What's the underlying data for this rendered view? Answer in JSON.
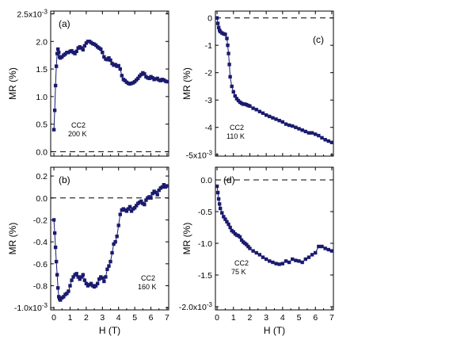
{
  "figure": {
    "x_axis_label": "H (T)",
    "y_axis_label": "MR (%)"
  },
  "colors": {
    "series": "#1a1a6e",
    "axes": "#000000"
  },
  "chart_data": [
    {
      "panel": "a",
      "type": "scatter",
      "panel_label": "(a)",
      "annotation_lines": [
        "CC2",
        "200 K"
      ],
      "x_tick_labels": [
        "0",
        "1",
        "2",
        "3",
        "4",
        "5",
        "6",
        "7"
      ],
      "y_tick_labels": [
        "0.0",
        "0.5",
        "1.0",
        "1.5",
        "2.0",
        "2.5x10-3"
      ],
      "y_scale_note": "2.5x10-3",
      "xlim": [
        -0.2,
        7.1
      ],
      "ylim": [
        -0.08,
        2.55
      ],
      "xlabel": "H (T)",
      "ylabel": "MR (%)",
      "zero_line": true,
      "x": [
        0.0,
        0.05,
        0.1,
        0.15,
        0.2,
        0.25,
        0.3,
        0.35,
        0.4,
        0.5,
        0.6,
        0.7,
        0.8,
        0.9,
        1.0,
        1.1,
        1.2,
        1.3,
        1.4,
        1.5,
        1.6,
        1.7,
        1.8,
        1.9,
        2.0,
        2.1,
        2.2,
        2.3,
        2.4,
        2.5,
        2.6,
        2.7,
        2.8,
        2.9,
        3.0,
        3.1,
        3.2,
        3.3,
        3.4,
        3.5,
        3.6,
        3.7,
        3.8,
        3.9,
        4.0,
        4.1,
        4.2,
        4.3,
        4.4,
        4.5,
        4.6,
        4.7,
        4.8,
        4.9,
        5.0,
        5.1,
        5.2,
        5.3,
        5.4,
        5.5,
        5.6,
        5.7,
        5.8,
        5.9,
        6.0,
        6.1,
        6.2,
        6.3,
        6.4,
        6.5,
        6.6,
        6.7,
        6.8,
        6.9,
        7.0
      ],
      "y": [
        0.4,
        0.75,
        1.2,
        1.55,
        1.78,
        1.86,
        1.8,
        1.72,
        1.7,
        1.72,
        1.75,
        1.77,
        1.8,
        1.8,
        1.82,
        1.83,
        1.8,
        1.78,
        1.82,
        1.88,
        1.9,
        1.88,
        1.85,
        1.92,
        1.97,
        2.0,
        2.0,
        1.98,
        1.96,
        1.95,
        1.93,
        1.9,
        1.88,
        1.86,
        1.8,
        1.72,
        1.68,
        1.67,
        1.7,
        1.66,
        1.6,
        1.57,
        1.58,
        1.55,
        1.56,
        1.5,
        1.38,
        1.31,
        1.29,
        1.26,
        1.24,
        1.23,
        1.24,
        1.25,
        1.27,
        1.3,
        1.33,
        1.37,
        1.4,
        1.43,
        1.41,
        1.36,
        1.34,
        1.33,
        1.36,
        1.34,
        1.31,
        1.32,
        1.33,
        1.3,
        1.29,
        1.31,
        1.3,
        1.28,
        1.27
      ]
    },
    {
      "panel": "b",
      "type": "scatter",
      "panel_label": "(b)",
      "annotation_lines": [
        "CC2",
        "160 K"
      ],
      "x_tick_labels": [
        "0",
        "1",
        "2",
        "3",
        "4",
        "5",
        "6",
        "7"
      ],
      "y_tick_labels": [
        "-1.0x10-3",
        "-0.8",
        "-0.6",
        "-0.4",
        "-0.2",
        "0.0",
        "0.2"
      ],
      "y_scale_note": "-1.0x10-3",
      "xlim": [
        -0.2,
        7.1
      ],
      "ylim": [
        -1.02,
        0.28
      ],
      "xlabel": "H (T)",
      "ylabel": "MR (%)",
      "zero_line": true,
      "x": [
        0.0,
        0.05,
        0.1,
        0.15,
        0.2,
        0.25,
        0.3,
        0.35,
        0.4,
        0.5,
        0.6,
        0.7,
        0.8,
        0.9,
        1.0,
        1.1,
        1.2,
        1.3,
        1.4,
        1.5,
        1.6,
        1.7,
        1.8,
        1.9,
        2.0,
        2.1,
        2.2,
        2.3,
        2.4,
        2.5,
        2.6,
        2.7,
        2.8,
        2.9,
        3.0,
        3.1,
        3.2,
        3.3,
        3.4,
        3.5,
        3.6,
        3.7,
        3.8,
        3.9,
        4.0,
        4.1,
        4.2,
        4.3,
        4.4,
        4.5,
        4.6,
        4.7,
        4.8,
        4.9,
        5.0,
        5.1,
        5.2,
        5.3,
        5.4,
        5.5,
        5.6,
        5.7,
        5.8,
        5.9,
        6.0,
        6.1,
        6.2,
        6.3,
        6.4,
        6.5,
        6.6,
        6.7,
        6.8,
        6.9,
        7.0
      ],
      "y": [
        -0.2,
        -0.32,
        -0.45,
        -0.58,
        -0.7,
        -0.82,
        -0.9,
        -0.92,
        -0.93,
        -0.91,
        -0.9,
        -0.88,
        -0.87,
        -0.85,
        -0.8,
        -0.75,
        -0.72,
        -0.7,
        -0.69,
        -0.72,
        -0.74,
        -0.72,
        -0.7,
        -0.75,
        -0.78,
        -0.8,
        -0.79,
        -0.78,
        -0.8,
        -0.81,
        -0.8,
        -0.78,
        -0.74,
        -0.72,
        -0.73,
        -0.76,
        -0.72,
        -0.65,
        -0.62,
        -0.58,
        -0.5,
        -0.42,
        -0.4,
        -0.35,
        -0.25,
        -0.15,
        -0.11,
        -0.1,
        -0.11,
        -0.12,
        -0.1,
        -0.08,
        -0.12,
        -0.1,
        -0.09,
        -0.07,
        -0.05,
        -0.04,
        -0.03,
        -0.05,
        -0.06,
        -0.02,
        0.0,
        0.01,
        0.0,
        0.04,
        0.06,
        0.05,
        0.03,
        0.07,
        0.09,
        0.1,
        0.12,
        0.1,
        0.11
      ]
    },
    {
      "panel": "c",
      "type": "scatter",
      "panel_label": "(c)",
      "annotation_lines": [
        "CC2",
        "110 K"
      ],
      "x_tick_labels": [
        "0",
        "1",
        "2",
        "3",
        "4",
        "5",
        "6",
        "7"
      ],
      "y_tick_labels": [
        "-5x10-3",
        "-4",
        "-3",
        "-2",
        "-1",
        "0"
      ],
      "y_scale_note": "-5x10-3",
      "xlim": [
        -0.1,
        7.1
      ],
      "ylim": [
        -5.05,
        0.25
      ],
      "xlabel": "H (T)",
      "ylabel": "MR (%)",
      "zero_line": true,
      "x": [
        0.0,
        0.05,
        0.1,
        0.15,
        0.2,
        0.3,
        0.4,
        0.5,
        0.6,
        0.65,
        0.7,
        0.75,
        0.8,
        0.9,
        1.0,
        1.1,
        1.2,
        1.3,
        1.4,
        1.5,
        1.6,
        1.7,
        1.8,
        1.9,
        2.0,
        2.2,
        2.4,
        2.6,
        2.8,
        3.0,
        3.2,
        3.4,
        3.6,
        3.8,
        4.0,
        4.2,
        4.4,
        4.6,
        4.8,
        5.0,
        5.2,
        5.4,
        5.6,
        5.8,
        6.0,
        6.2,
        6.4,
        6.6,
        6.8,
        7.0
      ],
      "y": [
        0.0,
        -0.2,
        -0.35,
        -0.45,
        -0.5,
        -0.55,
        -0.58,
        -0.6,
        -0.75,
        -1.0,
        -1.3,
        -1.7,
        -2.15,
        -2.5,
        -2.7,
        -2.85,
        -2.95,
        -3.02,
        -3.08,
        -3.12,
        -3.15,
        -3.15,
        -3.17,
        -3.2,
        -3.22,
        -3.3,
        -3.35,
        -3.42,
        -3.48,
        -3.55,
        -3.6,
        -3.65,
        -3.7,
        -3.75,
        -3.8,
        -3.88,
        -3.92,
        -3.95,
        -4.0,
        -4.05,
        -4.1,
        -4.15,
        -4.2,
        -4.2,
        -4.25,
        -4.3,
        -4.38,
        -4.45,
        -4.5,
        -4.55
      ]
    },
    {
      "panel": "d",
      "type": "scatter",
      "panel_label": "(d)",
      "annotation_lines": [
        "CC2",
        "75 K"
      ],
      "x_tick_labels": [
        "0",
        "1",
        "2",
        "3",
        "4",
        "5",
        "6",
        "7"
      ],
      "y_tick_labels": [
        "-2.0x10-3",
        "-1.5",
        "-1.0",
        "-0.5",
        "0.0"
      ],
      "y_scale_note": "-2.0x10-3",
      "xlim": [
        -0.1,
        7.1
      ],
      "ylim": [
        -2.05,
        0.2
      ],
      "xlabel": "H (T)",
      "ylabel": "MR (%)",
      "zero_line": true,
      "x": [
        0.0,
        0.05,
        0.1,
        0.15,
        0.2,
        0.3,
        0.4,
        0.5,
        0.6,
        0.7,
        0.8,
        0.9,
        1.0,
        1.1,
        1.2,
        1.3,
        1.4,
        1.5,
        1.6,
        1.7,
        1.8,
        1.9,
        2.0,
        2.2,
        2.4,
        2.6,
        2.8,
        3.0,
        3.2,
        3.4,
        3.6,
        3.8,
        4.0,
        4.2,
        4.4,
        4.6,
        4.8,
        5.0,
        5.2,
        5.4,
        5.6,
        5.8,
        6.0,
        6.2,
        6.4,
        6.6,
        6.8,
        7.0
      ],
      "y": [
        -0.1,
        -0.2,
        -0.3,
        -0.38,
        -0.45,
        -0.52,
        -0.58,
        -0.62,
        -0.66,
        -0.7,
        -0.75,
        -0.8,
        -0.82,
        -0.85,
        -0.87,
        -0.88,
        -0.9,
        -0.95,
        -0.98,
        -1.0,
        -1.02,
        -1.05,
        -1.08,
        -1.12,
        -1.15,
        -1.18,
        -1.22,
        -1.25,
        -1.28,
        -1.3,
        -1.32,
        -1.33,
        -1.32,
        -1.28,
        -1.3,
        -1.25,
        -1.27,
        -1.28,
        -1.3,
        -1.25,
        -1.22,
        -1.18,
        -1.15,
        -1.05,
        -1.05,
        -1.08,
        -1.1,
        -1.12
      ]
    }
  ]
}
